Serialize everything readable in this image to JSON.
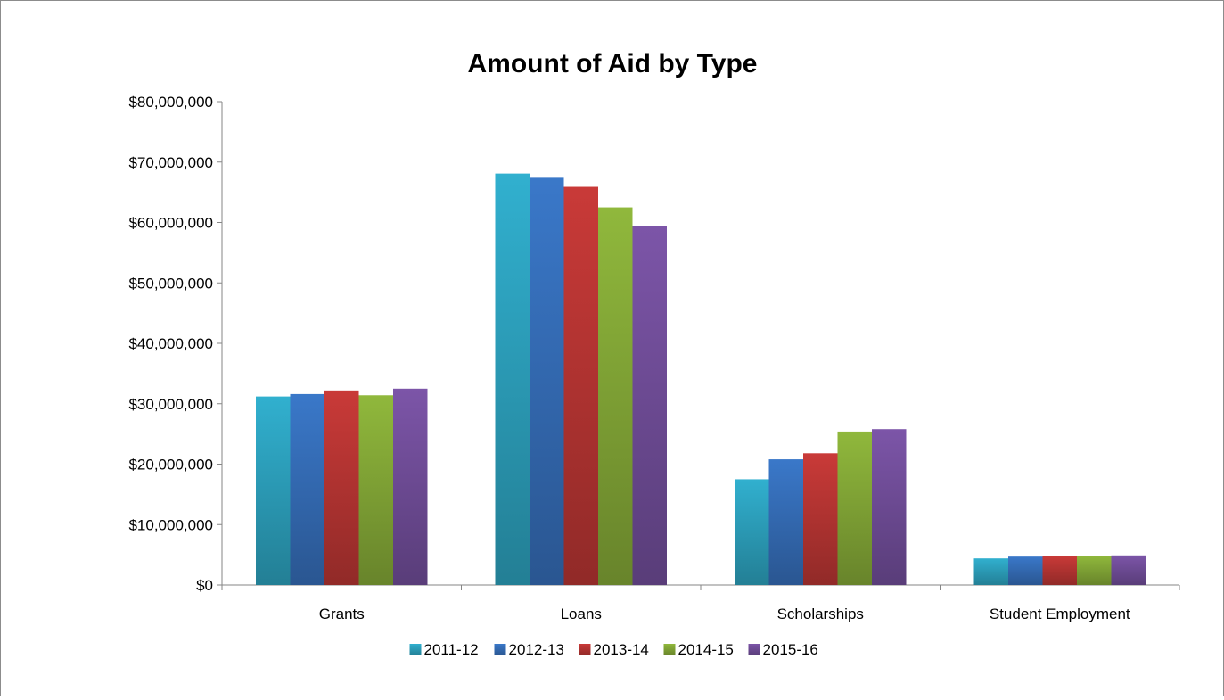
{
  "chart_data": {
    "type": "bar",
    "title": "Amount of Aid by Type",
    "xlabel": "",
    "ylabel": "",
    "categories": [
      "Grants",
      "Loans",
      "Scholarships",
      "Student Employment"
    ],
    "ylim": [
      0,
      80000000
    ],
    "yticks": [
      0,
      10000000,
      20000000,
      30000000,
      40000000,
      50000000,
      60000000,
      70000000,
      80000000
    ],
    "ytick_labels": [
      "$0",
      "$10,000,000",
      "$20,000,000",
      "$30,000,000",
      "$40,000,000",
      "$50,000,000",
      "$60,000,000",
      "$70,000,000",
      "$80,000,000"
    ],
    "grid": false,
    "legend_position": "bottom",
    "series": [
      {
        "name": "2011-12",
        "color": "#31b0cf",
        "values": [
          31200000,
          68100000,
          17500000,
          4400000
        ]
      },
      {
        "name": "2012-13",
        "color": "#3a78c9",
        "values": [
          31600000,
          67400000,
          20800000,
          4700000
        ]
      },
      {
        "name": "2013-14",
        "color": "#c93a38",
        "values": [
          32200000,
          65900000,
          21800000,
          4800000
        ]
      },
      {
        "name": "2014-15",
        "color": "#90b83c",
        "values": [
          31400000,
          62500000,
          25400000,
          4800000
        ]
      },
      {
        "name": "2015-16",
        "color": "#7c55a8",
        "values": [
          32500000,
          59400000,
          25800000,
          4900000
        ]
      }
    ]
  }
}
